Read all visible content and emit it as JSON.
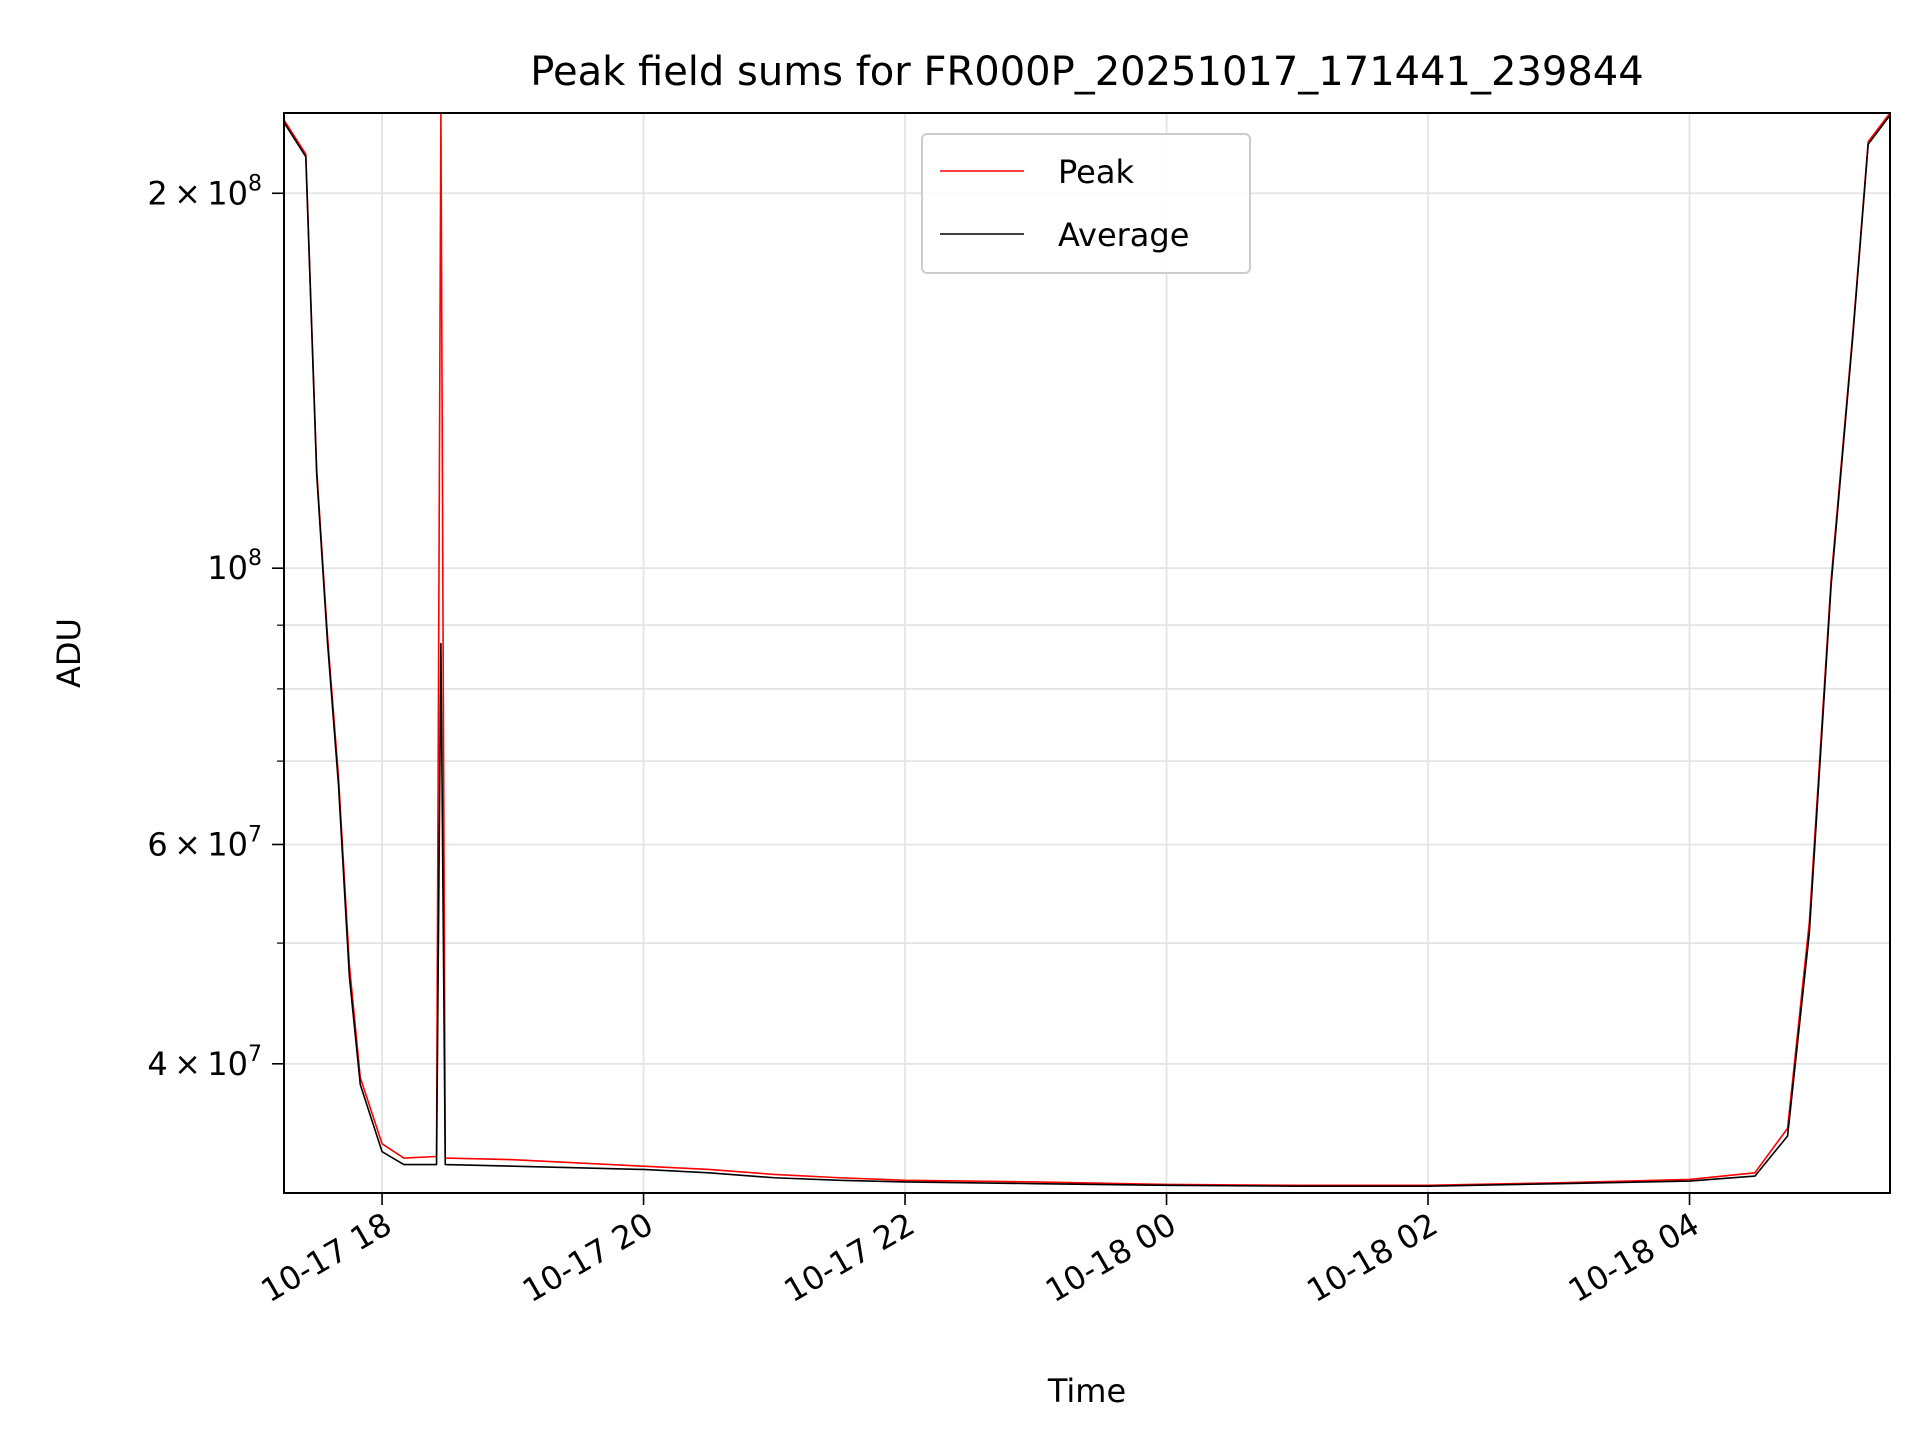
{
  "chart_data": {
    "type": "line",
    "title": "Peak field sums for FR000P_20251017_171441_239844",
    "xlabel": "Time",
    "ylabel": "ADU",
    "yscale": "log",
    "grid": true,
    "legend_position": "top-center",
    "xlim": [
      "2025-10-17 17:15",
      "2025-10-18 05:32"
    ],
    "ylim": [
      31500000,
      232000000
    ],
    "x_ticks": [
      {
        "value": "2025-10-17 18:00",
        "label": "10-17 18"
      },
      {
        "value": "2025-10-17 20:00",
        "label": "10-17 20"
      },
      {
        "value": "2025-10-17 22:00",
        "label": "10-17 22"
      },
      {
        "value": "2025-10-18 00:00",
        "label": "10-18 00"
      },
      {
        "value": "2025-10-18 02:00",
        "label": "10-18 02"
      },
      {
        "value": "2025-10-18 04:00",
        "label": "10-18 04"
      }
    ],
    "y_major_ticks": [
      {
        "value": 40000000,
        "mantissa": "4",
        "exp": "7"
      },
      {
        "value": 60000000,
        "mantissa": "6",
        "exp": "7"
      },
      {
        "value": 100000000,
        "mantissa": "",
        "exp": "8"
      },
      {
        "value": 200000000,
        "mantissa": "2",
        "exp": "8"
      }
    ],
    "y_minor_ticks": [
      50000000,
      70000000,
      80000000,
      90000000
    ],
    "series": [
      {
        "name": "Peak",
        "color": "#ff0000",
        "points": [
          {
            "x": "2025-10-17 17:15",
            "y": 229000000
          },
          {
            "x": "2025-10-17 17:25",
            "y": 215000000
          },
          {
            "x": "2025-10-17 17:30",
            "y": 120000000
          },
          {
            "x": "2025-10-17 17:35",
            "y": 88000000
          },
          {
            "x": "2025-10-17 17:40",
            "y": 68000000
          },
          {
            "x": "2025-10-17 17:45",
            "y": 48000000
          },
          {
            "x": "2025-10-17 17:50",
            "y": 39000000
          },
          {
            "x": "2025-10-17 18:00",
            "y": 34500000
          },
          {
            "x": "2025-10-17 18:10",
            "y": 33600000
          },
          {
            "x": "2025-10-17 18:25",
            "y": 33700000
          },
          {
            "x": "2025-10-17 18:27",
            "y": 232000000
          },
          {
            "x": "2025-10-17 18:29",
            "y": 33600000
          },
          {
            "x": "2025-10-17 19:00",
            "y": 33500000
          },
          {
            "x": "2025-10-17 19:30",
            "y": 33300000
          },
          {
            "x": "2025-10-17 20:00",
            "y": 33100000
          },
          {
            "x": "2025-10-17 20:30",
            "y": 32900000
          },
          {
            "x": "2025-10-17 21:00",
            "y": 32600000
          },
          {
            "x": "2025-10-17 21:30",
            "y": 32400000
          },
          {
            "x": "2025-10-17 22:00",
            "y": 32250000
          },
          {
            "x": "2025-10-17 23:00",
            "y": 32150000
          },
          {
            "x": "2025-10-18 00:00",
            "y": 32000000
          },
          {
            "x": "2025-10-18 01:00",
            "y": 31950000
          },
          {
            "x": "2025-10-18 02:00",
            "y": 31950000
          },
          {
            "x": "2025-10-18 03:00",
            "y": 32100000
          },
          {
            "x": "2025-10-18 04:00",
            "y": 32300000
          },
          {
            "x": "2025-10-18 04:30",
            "y": 32700000
          },
          {
            "x": "2025-10-18 04:45",
            "y": 35500000
          },
          {
            "x": "2025-10-18 04:55",
            "y": 52000000
          },
          {
            "x": "2025-10-18 05:05",
            "y": 98000000
          },
          {
            "x": "2025-10-18 05:15",
            "y": 155000000
          },
          {
            "x": "2025-10-18 05:22",
            "y": 220000000
          },
          {
            "x": "2025-10-18 05:32",
            "y": 232000000
          }
        ]
      },
      {
        "name": "Average",
        "color": "#000000",
        "points": [
          {
            "x": "2025-10-17 17:15",
            "y": 228000000
          },
          {
            "x": "2025-10-17 17:25",
            "y": 214000000
          },
          {
            "x": "2025-10-17 17:30",
            "y": 119000000
          },
          {
            "x": "2025-10-17 17:35",
            "y": 87000000
          },
          {
            "x": "2025-10-17 17:40",
            "y": 67000000
          },
          {
            "x": "2025-10-17 17:45",
            "y": 47000000
          },
          {
            "x": "2025-10-17 17:50",
            "y": 38500000
          },
          {
            "x": "2025-10-17 18:00",
            "y": 34000000
          },
          {
            "x": "2025-10-17 18:10",
            "y": 33200000
          },
          {
            "x": "2025-10-17 18:25",
            "y": 33200000
          },
          {
            "x": "2025-10-17 18:27",
            "y": 87000000
          },
          {
            "x": "2025-10-17 18:29",
            "y": 33200000
          },
          {
            "x": "2025-10-17 19:00",
            "y": 33100000
          },
          {
            "x": "2025-10-17 19:30",
            "y": 33000000
          },
          {
            "x": "2025-10-17 20:00",
            "y": 32900000
          },
          {
            "x": "2025-10-17 20:30",
            "y": 32700000
          },
          {
            "x": "2025-10-17 21:00",
            "y": 32400000
          },
          {
            "x": "2025-10-17 21:30",
            "y": 32250000
          },
          {
            "x": "2025-10-17 22:00",
            "y": 32150000
          },
          {
            "x": "2025-10-17 23:00",
            "y": 32050000
          },
          {
            "x": "2025-10-18 00:00",
            "y": 31950000
          },
          {
            "x": "2025-10-18 01:00",
            "y": 31900000
          },
          {
            "x": "2025-10-18 02:00",
            "y": 31900000
          },
          {
            "x": "2025-10-18 03:00",
            "y": 32050000
          },
          {
            "x": "2025-10-18 04:00",
            "y": 32200000
          },
          {
            "x": "2025-10-18 04:30",
            "y": 32500000
          },
          {
            "x": "2025-10-18 04:45",
            "y": 35000000
          },
          {
            "x": "2025-10-18 04:55",
            "y": 51000000
          },
          {
            "x": "2025-10-18 05:05",
            "y": 97000000
          },
          {
            "x": "2025-10-18 05:15",
            "y": 154000000
          },
          {
            "x": "2025-10-18 05:22",
            "y": 219000000
          },
          {
            "x": "2025-10-18 05:32",
            "y": 231000000
          }
        ]
      }
    ]
  }
}
